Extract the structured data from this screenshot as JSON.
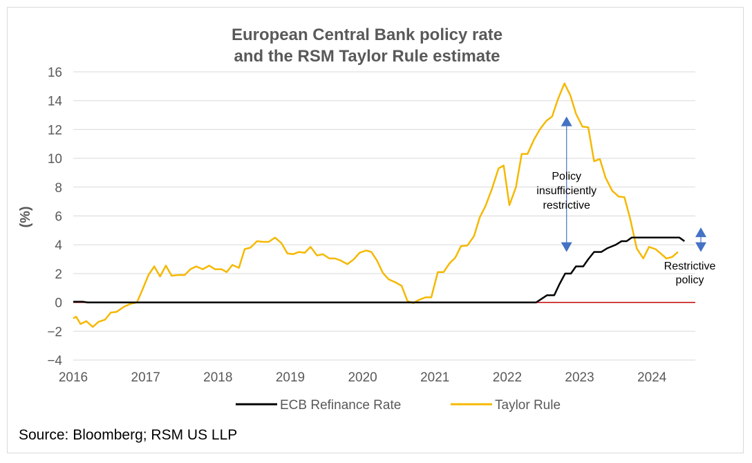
{
  "chart_data": {
    "type": "line",
    "title_lines": [
      "European Central Bank policy rate",
      "and the RSM Taylor Rule estimate"
    ],
    "ylabel": "(%)",
    "xlabel": "",
    "ylim": [
      -4,
      16
    ],
    "yticks": [
      -4,
      -2,
      0,
      2,
      4,
      6,
      8,
      10,
      12,
      14,
      16
    ],
    "xlim": [
      2016.0,
      2024.6
    ],
    "xticks": [
      "2016",
      "2017",
      "2018",
      "2019",
      "2020",
      "2021",
      "2022",
      "2023",
      "2024"
    ],
    "grid": "horizontal",
    "legend_position": "bottom",
    "zero_line_color": "#c00000",
    "series": [
      {
        "name": "ECB Refinance Rate",
        "color": "#000000",
        "points": [
          [
            2016.0,
            0.05
          ],
          [
            2016.13,
            0.05
          ],
          [
            2016.2,
            0.0
          ],
          [
            2022.4,
            0.0
          ],
          [
            2022.55,
            0.5
          ],
          [
            2022.65,
            0.5
          ],
          [
            2022.72,
            1.25
          ],
          [
            2022.8,
            2.0
          ],
          [
            2022.88,
            2.0
          ],
          [
            2022.95,
            2.5
          ],
          [
            2023.05,
            2.5
          ],
          [
            2023.12,
            3.0
          ],
          [
            2023.2,
            3.5
          ],
          [
            2023.3,
            3.5
          ],
          [
            2023.38,
            3.75
          ],
          [
            2023.5,
            4.0
          ],
          [
            2023.58,
            4.25
          ],
          [
            2023.65,
            4.25
          ],
          [
            2023.72,
            4.5
          ],
          [
            2024.38,
            4.5
          ],
          [
            2024.45,
            4.25
          ]
        ]
      },
      {
        "name": "Taylor Rule",
        "color": "#f5b800",
        "points": [
          [
            2016.0,
            -1.1
          ],
          [
            2016.04,
            -1.0
          ],
          [
            2016.1,
            -1.5
          ],
          [
            2016.18,
            -1.3
          ],
          [
            2016.27,
            -1.7
          ],
          [
            2016.35,
            -1.35
          ],
          [
            2016.44,
            -1.2
          ],
          [
            2016.52,
            -0.7
          ],
          [
            2016.6,
            -0.65
          ],
          [
            2016.7,
            -0.3
          ],
          [
            2016.79,
            -0.1
          ],
          [
            2016.88,
            0.0
          ],
          [
            2016.95,
            0.8
          ],
          [
            2017.04,
            1.9
          ],
          [
            2017.12,
            2.5
          ],
          [
            2017.2,
            1.8
          ],
          [
            2017.28,
            2.55
          ],
          [
            2017.36,
            1.85
          ],
          [
            2017.45,
            1.9
          ],
          [
            2017.54,
            1.9
          ],
          [
            2017.62,
            2.3
          ],
          [
            2017.7,
            2.5
          ],
          [
            2017.79,
            2.3
          ],
          [
            2017.88,
            2.55
          ],
          [
            2017.96,
            2.3
          ],
          [
            2018.05,
            2.3
          ],
          [
            2018.12,
            2.1
          ],
          [
            2018.2,
            2.6
          ],
          [
            2018.29,
            2.4
          ],
          [
            2018.37,
            3.7
          ],
          [
            2018.45,
            3.8
          ],
          [
            2018.54,
            4.25
          ],
          [
            2018.62,
            4.2
          ],
          [
            2018.7,
            4.2
          ],
          [
            2018.79,
            4.5
          ],
          [
            2018.88,
            4.1
          ],
          [
            2018.96,
            3.4
          ],
          [
            2019.04,
            3.35
          ],
          [
            2019.12,
            3.5
          ],
          [
            2019.2,
            3.45
          ],
          [
            2019.28,
            3.85
          ],
          [
            2019.37,
            3.25
          ],
          [
            2019.45,
            3.35
          ],
          [
            2019.54,
            3.05
          ],
          [
            2019.62,
            3.05
          ],
          [
            2019.7,
            2.9
          ],
          [
            2019.79,
            2.65
          ],
          [
            2019.88,
            3.0
          ],
          [
            2019.96,
            3.45
          ],
          [
            2020.05,
            3.6
          ],
          [
            2020.12,
            3.5
          ],
          [
            2020.2,
            2.9
          ],
          [
            2020.28,
            2.05
          ],
          [
            2020.36,
            1.6
          ],
          [
            2020.45,
            1.4
          ],
          [
            2020.54,
            1.15
          ],
          [
            2020.62,
            0.1
          ],
          [
            2020.7,
            -0.05
          ],
          [
            2020.79,
            0.2
          ],
          [
            2020.87,
            0.35
          ],
          [
            2020.95,
            0.35
          ],
          [
            2021.04,
            2.1
          ],
          [
            2021.12,
            2.1
          ],
          [
            2021.2,
            2.7
          ],
          [
            2021.28,
            3.1
          ],
          [
            2021.36,
            3.9
          ],
          [
            2021.45,
            3.95
          ],
          [
            2021.54,
            4.6
          ],
          [
            2021.62,
            5.9
          ],
          [
            2021.7,
            6.7
          ],
          [
            2021.79,
            7.9
          ],
          [
            2021.88,
            9.3
          ],
          [
            2021.95,
            9.5
          ],
          [
            2022.03,
            6.75
          ],
          [
            2022.12,
            8.0
          ],
          [
            2022.2,
            10.3
          ],
          [
            2022.28,
            10.3
          ],
          [
            2022.37,
            11.3
          ],
          [
            2022.45,
            12.0
          ],
          [
            2022.54,
            12.6
          ],
          [
            2022.62,
            12.9
          ],
          [
            2022.7,
            14.1
          ],
          [
            2022.79,
            15.2
          ],
          [
            2022.87,
            14.4
          ],
          [
            2022.95,
            13.1
          ],
          [
            2023.04,
            12.2
          ],
          [
            2023.12,
            12.15
          ],
          [
            2023.2,
            9.8
          ],
          [
            2023.28,
            9.95
          ],
          [
            2023.36,
            8.65
          ],
          [
            2023.45,
            7.75
          ],
          [
            2023.54,
            7.35
          ],
          [
            2023.62,
            7.3
          ],
          [
            2023.7,
            5.8
          ],
          [
            2023.79,
            3.75
          ],
          [
            2023.88,
            3.05
          ],
          [
            2023.96,
            3.85
          ],
          [
            2024.05,
            3.7
          ],
          [
            2024.12,
            3.4
          ],
          [
            2024.2,
            3.05
          ],
          [
            2024.28,
            3.15
          ],
          [
            2024.36,
            3.5
          ]
        ]
      }
    ],
    "annotations": [
      {
        "lines": [
          "Policy",
          "insufficiently",
          "restrictive"
        ],
        "arrow_from": 3.5,
        "arrow_to": 12.9,
        "arrow_x": 2022.82
      },
      {
        "lines": [
          "Restrictive",
          "policy"
        ],
        "arrow_from": 3.5,
        "arrow_to": 5.2,
        "arrow_x": 2024.62
      }
    ],
    "arrow_color": "#4472c4"
  },
  "legend": {
    "items": [
      {
        "label": "ECB Refinance Rate",
        "color": "#000000"
      },
      {
        "label": "Taylor Rule",
        "color": "#f5b800"
      }
    ]
  },
  "source": "Source: Bloomberg; RSM US LLP"
}
